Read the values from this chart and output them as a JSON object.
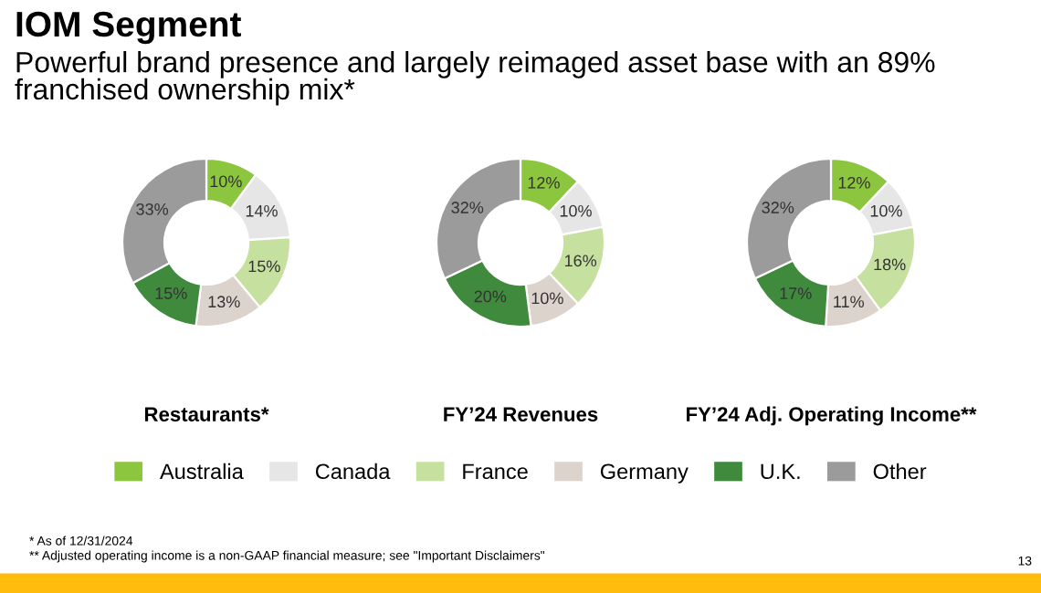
{
  "chart_data": [
    {
      "type": "donut",
      "title": "IOM Segment",
      "subtitle": "Powerful brand presence and largely reimaged asset base with an 89% franchised ownership mix*",
      "xlabel": "Restaurants*",
      "categories": [
        "Australia",
        "Canada",
        "France",
        "Germany",
        "U.K.",
        "Other"
      ],
      "values": [
        10,
        14,
        15,
        13,
        15,
        33
      ],
      "value_labels": [
        "10%",
        "14%",
        "15%",
        "13%",
        "15%",
        "33%"
      ],
      "colors": [
        "#8cc63f",
        "#e6e6e6",
        "#c6e19f",
        "#ddd3cd",
        "#3f8a3c",
        "#9b9b9b"
      ],
      "legend": "bottom"
    },
    {
      "type": "donut",
      "xlabel": "FY’24 Revenues",
      "categories": [
        null,
        null,
        null,
        null,
        null,
        null
      ],
      "values": [
        12,
        10,
        16,
        10,
        20,
        32
      ],
      "value_labels": [
        "12%",
        "10%",
        "16%",
        "10%",
        "20%",
        "32%"
      ],
      "colors": [
        "#8cc63f",
        "#e6e6e6",
        "#c6e19f",
        "#ddd3cd",
        "#3f8a3c",
        "#9b9b9b"
      ]
    },
    {
      "type": "donut",
      "xlabel": "FY’24 Adj. Operating Income**",
      "categories": [
        null,
        null,
        null,
        null,
        null,
        null
      ],
      "values": [
        12,
        10,
        18,
        11,
        17,
        32
      ],
      "value_labels": [
        "12%",
        "10%",
        "18%",
        "11%",
        "17%",
        "32%"
      ],
      "colors": [
        "#8cc63f",
        "#e6e6e6",
        "#c6e19f",
        "#ddd3cd",
        "#3f8a3c",
        "#9b9b9b"
      ],
      "annotations": [
        "* As of 12/31/2024",
        "** Adjusted operating income is a non-GAAP financial measure; see \"Important Disclaimers\"",
        "13"
      ]
    }
  ]
}
